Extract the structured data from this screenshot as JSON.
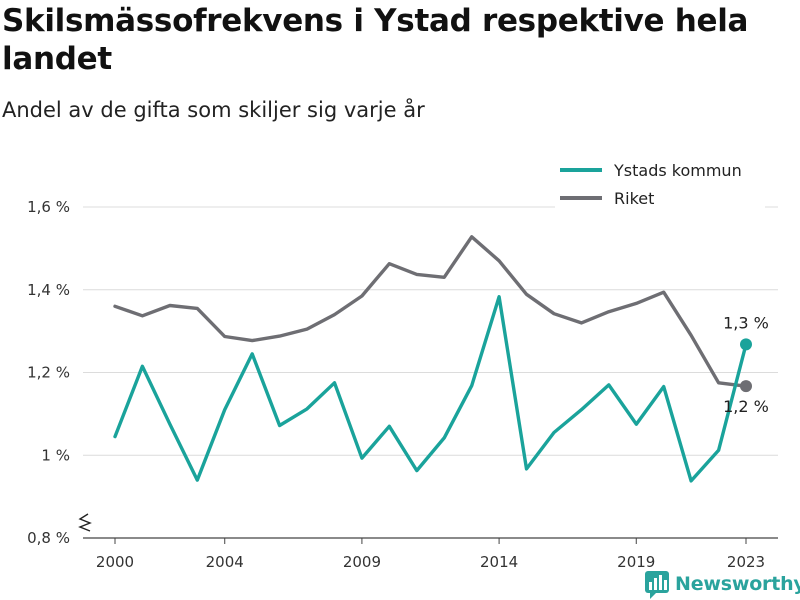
{
  "title": "Skilsmässofrekvens i Ystad respektive hela landet",
  "subtitle": "Andel av de gifta som skiljer sig varje år",
  "brand": "Newsworthy",
  "colors": {
    "ystad": "#1aa39b",
    "riket": "#6e6e73",
    "grid": "#dcdcdc",
    "axis": "#444444",
    "brand": "#2aa39d"
  },
  "chart_data": {
    "type": "line",
    "x": [
      2000,
      2001,
      2002,
      2003,
      2004,
      2005,
      2006,
      2007,
      2008,
      2009,
      2010,
      2011,
      2012,
      2013,
      2014,
      2015,
      2016,
      2017,
      2018,
      2019,
      2020,
      2021,
      2022,
      2023
    ],
    "series": [
      {
        "name": "Ystads kommun",
        "color": "#1aa39b",
        "values": [
          1.045,
          1.215,
          1.075,
          0.94,
          1.11,
          1.245,
          1.072,
          1.112,
          1.175,
          0.993,
          1.07,
          0.963,
          1.042,
          1.168,
          1.383,
          0.967,
          1.055,
          1.11,
          1.17,
          1.075,
          1.166,
          0.938,
          1.012,
          1.268
        ]
      },
      {
        "name": "Riket",
        "color": "#6e6e73",
        "values": [
          1.36,
          1.337,
          1.362,
          1.355,
          1.287,
          1.277,
          1.288,
          1.305,
          1.34,
          1.385,
          1.463,
          1.437,
          1.43,
          1.528,
          1.47,
          1.389,
          1.342,
          1.32,
          1.347,
          1.367,
          1.394,
          1.29,
          1.175,
          1.167
        ]
      }
    ],
    "end_labels": [
      "1,3 %",
      "1,2 %"
    ],
    "y_ticks": [
      "1,6 %",
      "1,4 %",
      "1,2 %",
      "1 %",
      "0,8 %"
    ],
    "y_tick_values": [
      1.6,
      1.4,
      1.2,
      1.0,
      0.8
    ],
    "x_ticks": [
      "2000",
      "2004",
      "2009",
      "2014",
      "2019",
      "2023"
    ],
    "x_tick_values": [
      2000,
      2004,
      2009,
      2014,
      2019,
      2023
    ],
    "ylim": [
      0.8,
      1.6
    ],
    "xlim": [
      2000,
      2023
    ],
    "grid": true,
    "y_axis_break": true,
    "legend_position": "top-right"
  }
}
